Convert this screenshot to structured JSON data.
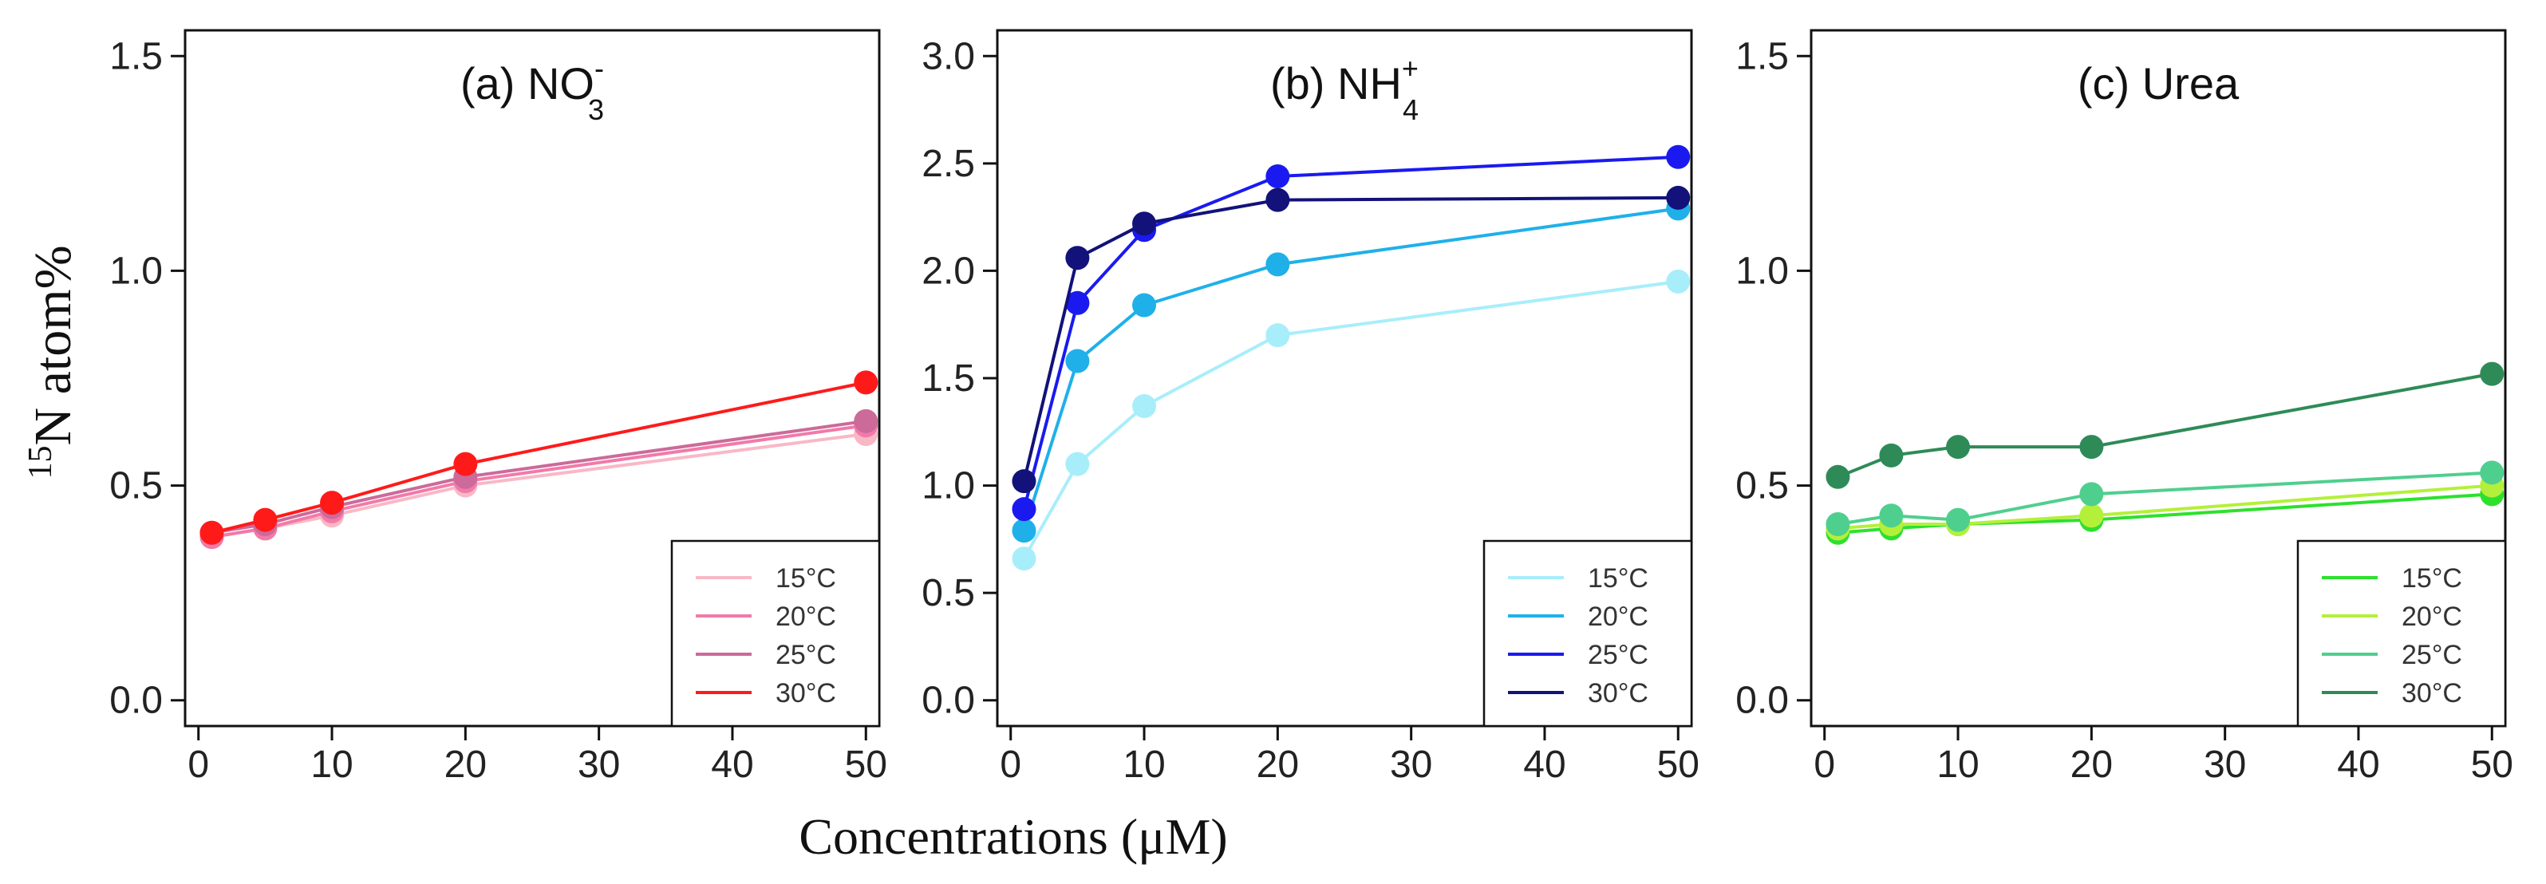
{
  "figure": {
    "ylabel_sup": "15",
    "ylabel_main": "N atom%",
    "xlabel": "Concentrations (μM)"
  },
  "chart_data": [
    {
      "type": "line",
      "id": "a",
      "title_prefix": "(a) ",
      "title_main": "NO",
      "title_sub": "3",
      "title_sup": "-",
      "x": [
        1,
        5,
        10,
        20,
        50
      ],
      "xticks": [
        0,
        10,
        20,
        30,
        40,
        50
      ],
      "xtick_labels": [
        "0",
        "10",
        "20",
        "30",
        "40",
        "50"
      ],
      "xlim": [
        -1,
        51
      ],
      "yticks": [
        0.0,
        0.5,
        1.0,
        1.5
      ],
      "ytick_labels": [
        "0.0",
        "0.5",
        "1.0",
        "1.5"
      ],
      "ylim": [
        -0.06,
        1.56
      ],
      "legend_position": "bottom-right",
      "series": [
        {
          "name": "15°C",
          "color": "#F9B8C6",
          "values": [
            0.38,
            0.4,
            0.43,
            0.5,
            0.62
          ]
        },
        {
          "name": "20°C",
          "color": "#F27AA8",
          "values": [
            0.38,
            0.4,
            0.44,
            0.51,
            0.64
          ]
        },
        {
          "name": "25°C",
          "color": "#CC6A9A",
          "values": [
            0.39,
            0.41,
            0.45,
            0.52,
            0.65
          ]
        },
        {
          "name": "30°C",
          "color": "#FF1A1A",
          "values": [
            0.39,
            0.42,
            0.46,
            0.55,
            0.74
          ]
        }
      ]
    },
    {
      "type": "line",
      "id": "b",
      "title_prefix": "(b) ",
      "title_main": "NH",
      "title_sub": "4",
      "title_sup": "+",
      "x": [
        1,
        5,
        10,
        20,
        50
      ],
      "xticks": [
        0,
        10,
        20,
        30,
        40,
        50
      ],
      "xtick_labels": [
        "0",
        "10",
        "20",
        "30",
        "40",
        "50"
      ],
      "xlim": [
        -1,
        51
      ],
      "yticks": [
        0.0,
        0.5,
        1.0,
        1.5,
        2.0,
        2.5,
        3.0
      ],
      "ytick_labels": [
        "0.0",
        "0.5",
        "1.0",
        "1.5",
        "2.0",
        "2.5",
        "3.0"
      ],
      "ylim": [
        -0.12,
        3.12
      ],
      "legend_position": "bottom-right",
      "series": [
        {
          "name": "15°C",
          "color": "#A8EEFA",
          "values": [
            0.66,
            1.1,
            1.37,
            1.7,
            1.95
          ]
        },
        {
          "name": "20°C",
          "color": "#1FB0EA",
          "values": [
            0.79,
            1.58,
            1.84,
            2.03,
            2.29
          ]
        },
        {
          "name": "25°C",
          "color": "#1A1AF0",
          "values": [
            0.89,
            1.85,
            2.19,
            2.44,
            2.53
          ]
        },
        {
          "name": "30°C",
          "color": "#12127A",
          "values": [
            1.02,
            2.06,
            2.22,
            2.33,
            2.34
          ]
        }
      ]
    },
    {
      "type": "line",
      "id": "c",
      "title_prefix": "(c) ",
      "title_main": "Urea",
      "title_sub": "",
      "title_sup": "",
      "x": [
        1,
        5,
        10,
        20,
        50
      ],
      "xticks": [
        0,
        10,
        20,
        30,
        40,
        50
      ],
      "xtick_labels": [
        "0",
        "10",
        "20",
        "30",
        "40",
        "50"
      ],
      "xlim": [
        -1,
        51
      ],
      "yticks": [
        0.0,
        0.5,
        1.0,
        1.5
      ],
      "ytick_labels": [
        "0.0",
        "0.5",
        "1.0",
        "1.5"
      ],
      "ylim": [
        -0.06,
        1.56
      ],
      "legend_position": "bottom-right",
      "series": [
        {
          "name": "15°C",
          "color": "#2EE02E",
          "values": [
            0.39,
            0.4,
            0.41,
            0.42,
            0.48
          ]
        },
        {
          "name": "20°C",
          "color": "#B4F03A",
          "values": [
            0.4,
            0.41,
            0.41,
            0.43,
            0.5
          ]
        },
        {
          "name": "25°C",
          "color": "#4FCF8E",
          "values": [
            0.41,
            0.43,
            0.42,
            0.48,
            0.53
          ]
        },
        {
          "name": "30°C",
          "color": "#2E8B57",
          "values": [
            0.52,
            0.57,
            0.59,
            0.59,
            0.76
          ]
        }
      ]
    }
  ]
}
